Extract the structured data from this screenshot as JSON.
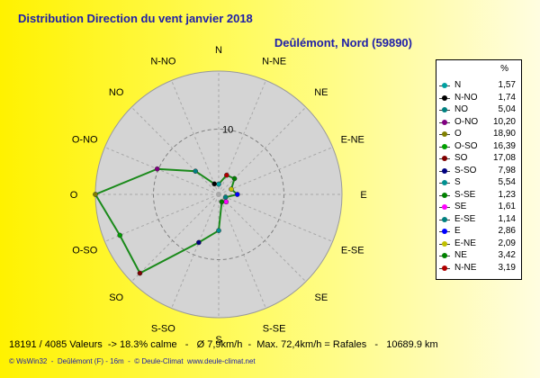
{
  "header": {
    "title": "Distribution Direction du vent   janvier 2018",
    "subtitle": "Deûlémont, Nord (59890)"
  },
  "chart_data": {
    "type": "radar",
    "directions": [
      "N",
      "N-NE",
      "NE",
      "E-NE",
      "E",
      "E-SE",
      "SE",
      "S-SE",
      "S",
      "S-SO",
      "SO",
      "O-SO",
      "O",
      "O-NO",
      "NO",
      "N-NO"
    ],
    "values": [
      1.57,
      3.19,
      3.42,
      2.09,
      2.86,
      1.14,
      1.61,
      1.23,
      5.54,
      7.98,
      17.08,
      16.39,
      18.9,
      10.2,
      5.04,
      1.74
    ],
    "point_colors": [
      "#00a0a0",
      "#b00000",
      "#008000",
      "#c0c000",
      "#0000ff",
      "#008080",
      "#ff00ff",
      "#008000",
      "#009090",
      "#000080",
      "#800000",
      "#00a000",
      "#808000",
      "#800080",
      "#008080",
      "#000000"
    ],
    "series_color": "#1a8a1a",
    "rmax": 18.9,
    "ring_ticks": [
      10
    ],
    "tick_labels": [
      "10"
    ],
    "grid": true
  },
  "legend": {
    "header": "%",
    "items": [
      {
        "dir": "N",
        "val": "1,57",
        "color": "#00a0a0"
      },
      {
        "dir": "N-NO",
        "val": "1,74",
        "color": "#000000"
      },
      {
        "dir": "NO",
        "val": "5,04",
        "color": "#008080"
      },
      {
        "dir": "O-NO",
        "val": "10,20",
        "color": "#800080"
      },
      {
        "dir": "O",
        "val": "18,90",
        "color": "#808000"
      },
      {
        "dir": "O-SO",
        "val": "16,39",
        "color": "#00a000"
      },
      {
        "dir": "SO",
        "val": "17,08",
        "color": "#800000"
      },
      {
        "dir": "S-SO",
        "val": "7,98",
        "color": "#000080"
      },
      {
        "dir": "S",
        "val": "5,54",
        "color": "#009090"
      },
      {
        "dir": "S-SE",
        "val": "1,23",
        "color": "#008000"
      },
      {
        "dir": "SE",
        "val": "1,61",
        "color": "#ff00ff"
      },
      {
        "dir": "E-SE",
        "val": "1,14",
        "color": "#008080"
      },
      {
        "dir": "E",
        "val": "2,86",
        "color": "#0000ff"
      },
      {
        "dir": "E-NE",
        "val": "2,09",
        "color": "#c0c000"
      },
      {
        "dir": "NE",
        "val": "3,42",
        "color": "#008000"
      },
      {
        "dir": "N-NE",
        "val": "3,19",
        "color": "#b00000"
      }
    ]
  },
  "footer": {
    "stats": "18191 / 4085 Valeurs  -> 18.3% calme   -   Ø 7,9km/h  -  Max. 72,4km/h = Rafales   -   10689.9 km",
    "credits": "© WsWin32  -  Deûlémont (F) - 16m  -  © Deule-Climat  www.deule-climat.net"
  }
}
